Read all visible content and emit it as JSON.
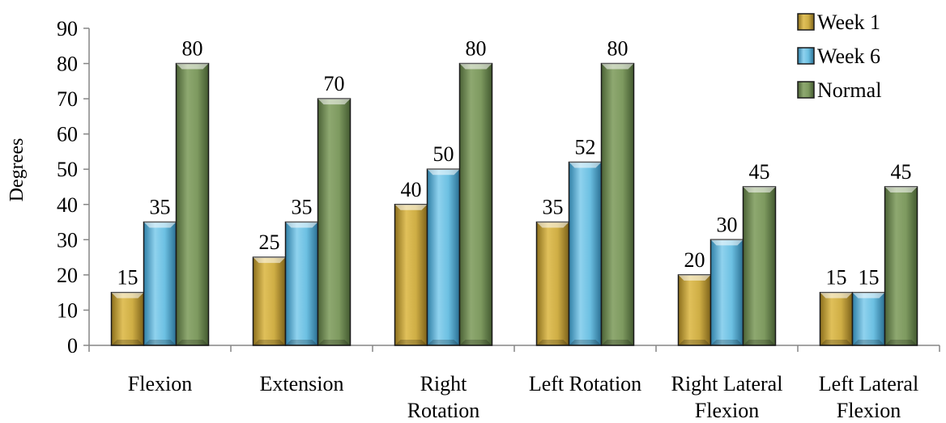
{
  "chart_data": {
    "type": "bar",
    "ylabel": "Degrees",
    "ylim": [
      0,
      90
    ],
    "yticks": [
      0,
      10,
      20,
      30,
      40,
      50,
      60,
      70,
      80,
      90
    ],
    "categories": [
      [
        "Flexion"
      ],
      [
        "Extension"
      ],
      [
        "Right",
        "Rotation"
      ],
      [
        "Left Rotation"
      ],
      [
        "Right Lateral",
        "Flexion"
      ],
      [
        "Left Lateral",
        "Flexion"
      ]
    ],
    "series": [
      {
        "name": "Week 1",
        "values": [
          15,
          25,
          40,
          35,
          20,
          15
        ],
        "color": "#c9a53a"
      },
      {
        "name": "Week 6",
        "values": [
          35,
          35,
          50,
          52,
          30,
          15
        ],
        "color": "#5fb3d6"
      },
      {
        "name": "Normal",
        "values": [
          80,
          70,
          80,
          80,
          45,
          45
        ],
        "color": "#77935a"
      }
    ],
    "legend_position": "top-right",
    "grid": false
  }
}
